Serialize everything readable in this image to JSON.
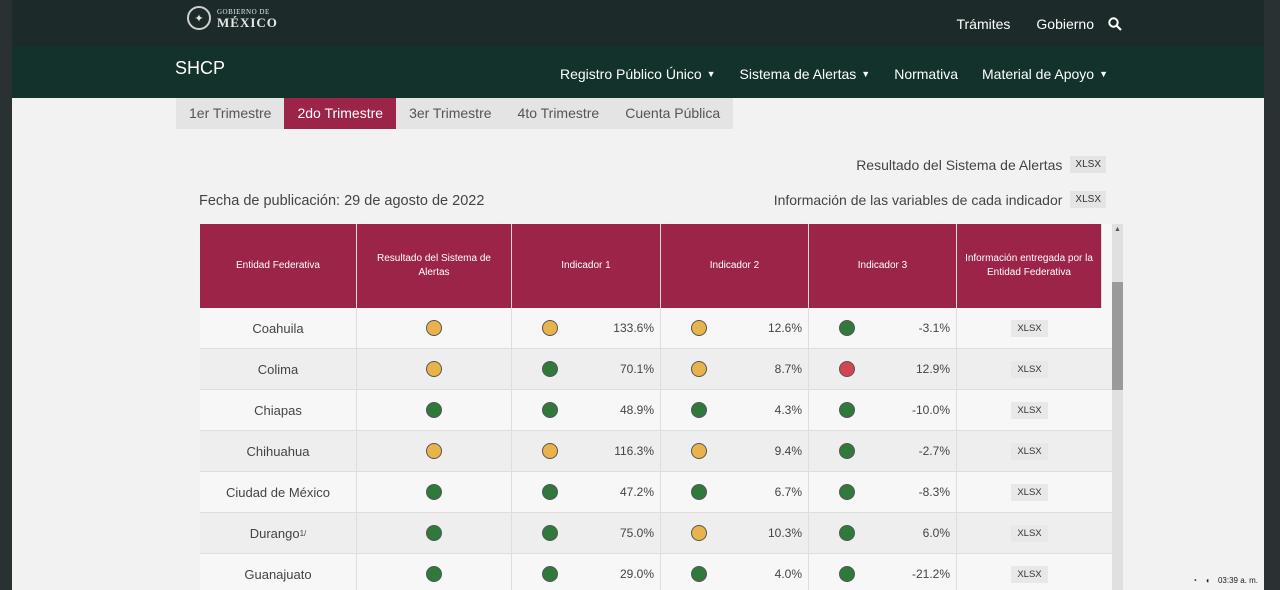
{
  "gov": {
    "logo_top": "GOBIERNO DE",
    "logo_main": "MÉXICO",
    "links": [
      "Trámites",
      "Gobierno"
    ],
    "search_icon": "search-icon"
  },
  "agency": {
    "name": "SHCP",
    "nav": [
      {
        "label": "Registro Público Único",
        "dropdown": true
      },
      {
        "label": "Sistema de Alertas",
        "dropdown": true
      },
      {
        "label": "Normativa",
        "dropdown": false
      },
      {
        "label": "Material de Apoyo",
        "dropdown": true
      }
    ]
  },
  "tabs": [
    "1er Trimestre",
    "2do Trimestre",
    "3er Trimestre",
    "4to Trimestre",
    "Cuenta Pública"
  ],
  "active_tab": 1,
  "links": {
    "resultado": "Resultado del Sistema de Alertas",
    "informacion": "Información de las variables de cada indicador",
    "badge": "XLSX"
  },
  "publication": "Fecha de publicación: 29 de agosto de 2022",
  "table": {
    "headers": [
      "Entidad Federativa",
      "Resultado del Sistema de Alertas",
      "Indicador 1",
      "Indicador 2",
      "Indicador 3",
      "Información entregada por la Entidad Federativa"
    ],
    "rows": [
      {
        "entidad": "Coahuila",
        "sup": "",
        "resultado": "amarillo",
        "i1": {
          "s": "amarillo",
          "v": "133.6%"
        },
        "i2": {
          "s": "amarillo",
          "v": "12.6%"
        },
        "i3": {
          "s": "verde",
          "v": "-3.1%"
        },
        "info": "XLSX"
      },
      {
        "entidad": "Colima",
        "sup": "",
        "resultado": "amarillo",
        "i1": {
          "s": "verde",
          "v": "70.1%"
        },
        "i2": {
          "s": "amarillo",
          "v": "8.7%"
        },
        "i3": {
          "s": "rojo",
          "v": "12.9%"
        },
        "info": "XLSX"
      },
      {
        "entidad": "Chiapas",
        "sup": "",
        "resultado": "verde",
        "i1": {
          "s": "verde",
          "v": "48.9%"
        },
        "i2": {
          "s": "verde",
          "v": "4.3%"
        },
        "i3": {
          "s": "verde",
          "v": "-10.0%"
        },
        "info": "XLSX"
      },
      {
        "entidad": "Chihuahua",
        "sup": "",
        "resultado": "amarillo",
        "i1": {
          "s": "amarillo",
          "v": "116.3%"
        },
        "i2": {
          "s": "amarillo",
          "v": "9.4%"
        },
        "i3": {
          "s": "verde",
          "v": "-2.7%"
        },
        "info": "XLSX"
      },
      {
        "entidad": "Ciudad de México",
        "sup": "",
        "resultado": "verde",
        "i1": {
          "s": "verde",
          "v": "47.2%"
        },
        "i2": {
          "s": "verde",
          "v": "6.7%"
        },
        "i3": {
          "s": "verde",
          "v": "-8.3%"
        },
        "info": "XLSX"
      },
      {
        "entidad": "Durango",
        "sup": "1/",
        "resultado": "verde",
        "i1": {
          "s": "verde",
          "v": "75.0%"
        },
        "i2": {
          "s": "amarillo",
          "v": "10.3%"
        },
        "i3": {
          "s": "verde",
          "v": "6.0%"
        },
        "info": "XLSX"
      },
      {
        "entidad": "Guanajuato",
        "sup": "",
        "resultado": "verde",
        "i1": {
          "s": "verde",
          "v": "29.0%"
        },
        "i2": {
          "s": "verde",
          "v": "4.0%"
        },
        "i3": {
          "s": "verde",
          "v": "-21.2%"
        },
        "info": "XLSX"
      }
    ]
  },
  "colors": {
    "header_bg": "#9d2449",
    "agency_bar": "#13322b",
    "amarillo": "#e8b34a",
    "verde": "#2f7a3b",
    "rojo": "#d24652"
  },
  "taskbar": {
    "time": "03:39 a. m."
  }
}
